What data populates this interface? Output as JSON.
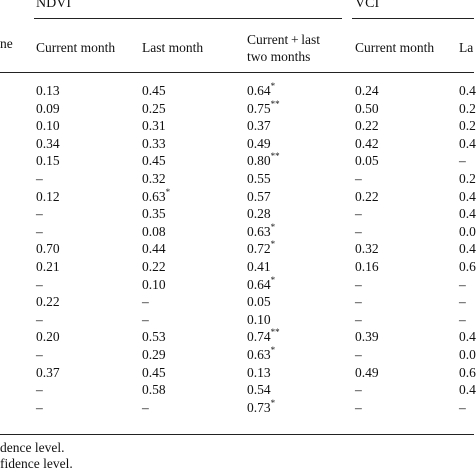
{
  "header": {
    "stub_fragment": "ne",
    "ndvi_label": "NDVI",
    "vci_label": "VCI",
    "ndvi_cols": [
      "Current month",
      "Last month",
      "Current + last",
      "two months"
    ],
    "vci_cols": [
      "Current month",
      "La"
    ]
  },
  "rows": [
    {
      "c1": "0.13",
      "c2": "0.45",
      "c3": "0.64",
      "c3_sig": "*",
      "v1": "0.24",
      "v2": "0.4"
    },
    {
      "c1": "0.09",
      "c2": "0.25",
      "c3": "0.75",
      "c3_sig": "**",
      "v1": "0.50",
      "v2": "0.2"
    },
    {
      "c1": "0.10",
      "c2": "0.31",
      "c3": "0.37",
      "c3_sig": "",
      "v1": "0.22",
      "v2": "0.2"
    },
    {
      "c1": "0.34",
      "c2": "0.33",
      "c3": "0.49",
      "c3_sig": "",
      "v1": "0.42",
      "v2": "0.4"
    },
    {
      "c1": "0.15",
      "c2": "0.45",
      "c3": "0.80",
      "c3_sig": "**",
      "v1": "0.05",
      "v2": "–"
    },
    {
      "c1": "–",
      "c2": "0.32",
      "c3": "0.55",
      "c3_sig": "",
      "v1": "–",
      "v2": "0.2"
    },
    {
      "c1": "0.12",
      "c2": "0.63",
      "c2_sig": "*",
      "c3": "0.57",
      "c3_sig": "",
      "v1": "0.22",
      "v2": "0.4"
    },
    {
      "c1": "–",
      "c2": "0.35",
      "c3": "0.28",
      "c3_sig": "",
      "v1": "–",
      "v2": "0.4"
    },
    {
      "c1": "–",
      "c2": "0.08",
      "c3": "0.63",
      "c3_sig": "*",
      "v1": "–",
      "v2": "0.0"
    },
    {
      "c1": "0.70",
      "c2": "0.44",
      "c3": "0.72",
      "c3_sig": "*",
      "v1": "0.32",
      "v2": "0.4"
    },
    {
      "c1": "0.21",
      "c2": "0.22",
      "c3": "0.41",
      "c3_sig": "",
      "v1": "0.16",
      "v2": "0.6"
    },
    {
      "c1": "–",
      "c2": "0.10",
      "c3": "0.64",
      "c3_sig": "*",
      "v1": "–",
      "v2": "–"
    },
    {
      "c1": "0.22",
      "c2": "–",
      "c3": "0.05",
      "c3_sig": "",
      "v1": "–",
      "v2": "–"
    },
    {
      "c1": "–",
      "c2": "–",
      "c3": "0.10",
      "c3_sig": "",
      "v1": "–",
      "v2": "–"
    },
    {
      "c1": "0.20",
      "c2": "0.53",
      "c3": "0.74",
      "c3_sig": "**",
      "v1": "0.39",
      "v2": "0.4"
    },
    {
      "c1": "–",
      "c2": "0.29",
      "c3": "0.63",
      "c3_sig": "*",
      "v1": "–",
      "v2": "0.0"
    },
    {
      "c1": "0.37",
      "c2": "0.45",
      "c3": "0.13",
      "c3_sig": "",
      "v1": "0.49",
      "v2": "0.6"
    },
    {
      "c1": "–",
      "c2": "0.58",
      "c3": "0.54",
      "c3_sig": "",
      "v1": "–",
      "v2": "0.4"
    },
    {
      "c1": "–",
      "c2": "–",
      "c3": "0.73",
      "c3_sig": "*",
      "v1": "–",
      "v2": "–"
    }
  ],
  "footnotes": [
    "dence level.",
    "fidence level."
  ]
}
